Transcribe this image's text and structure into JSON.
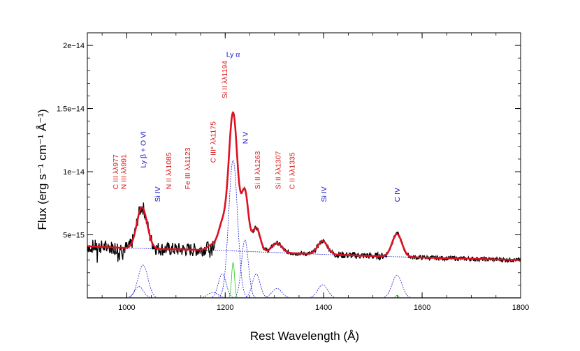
{
  "chart_data": {
    "type": "line",
    "title": "",
    "xlabel": "Rest Wavelength (Å)",
    "ylabel": "Flux (erg s⁻¹ cm⁻¹ Å⁻¹)",
    "xlim": [
      920,
      1800
    ],
    "ylim": [
      0,
      2.1e-14
    ],
    "x_ticks": [
      1000,
      1200,
      1400,
      1600,
      1800
    ],
    "x_tick_labels": [
      "1000",
      "1200",
      "1400",
      "1600",
      "1800"
    ],
    "y_ticks": [
      5e-15,
      1e-14,
      1.5e-14,
      2e-14
    ],
    "y_tick_labels": [
      "5e−15",
      "1e−14",
      "1.5e−14",
      "2e−14"
    ],
    "grid": false,
    "continuum": {
      "color": "#1a1acc",
      "points": [
        [
          920,
          4.1e-15
        ],
        [
          1000,
          3.95e-15
        ],
        [
          1200,
          3.75e-15
        ],
        [
          1400,
          3.45e-15
        ],
        [
          1600,
          3.2e-15
        ],
        [
          1800,
          3e-15
        ]
      ]
    },
    "components": [
      {
        "center": 1033,
        "amp": 2.6e-15,
        "sigma": 10,
        "color": "#1a1acc"
      },
      {
        "center": 1025,
        "amp": 9e-16,
        "sigma": 9,
        "color": "#1a1acc"
      },
      {
        "center": 1175,
        "amp": 4.5e-16,
        "sigma": 10,
        "color": "#1a1acc"
      },
      {
        "center": 1194,
        "amp": 1.9e-15,
        "sigma": 8,
        "color": "#1a1acc"
      },
      {
        "center": 1216,
        "amp": 1.09e-14,
        "sigma": 9,
        "color": "#1a1acc"
      },
      {
        "center": 1240,
        "amp": 4.6e-15,
        "sigma": 7,
        "color": "#1a1acc"
      },
      {
        "center": 1263,
        "amp": 1.9e-15,
        "sigma": 8,
        "color": "#1a1acc"
      },
      {
        "center": 1305,
        "amp": 7.5e-16,
        "sigma": 10,
        "color": "#1a1acc"
      },
      {
        "center": 1398,
        "amp": 1.05e-15,
        "sigma": 10,
        "color": "#1a1acc"
      },
      {
        "center": 1549,
        "amp": 1.8e-15,
        "sigma": 10,
        "color": "#1a1acc"
      },
      {
        "center": 1216,
        "amp": 2.8e-15,
        "sigma": 3,
        "color": "#22cc22"
      },
      {
        "center": 1549,
        "amp": 2e-16,
        "sigma": 3,
        "color": "#22cc22"
      }
    ],
    "series": [
      {
        "color": "#000000",
        "role": "observed spectrum"
      },
      {
        "color": "#dd1122",
        "role": "total model fit"
      }
    ],
    "annotations": [
      {
        "text": "Ly α",
        "x": 1216,
        "y": 1.91e-14,
        "rotate": 0,
        "color": "#1a1acc"
      },
      {
        "text": "N V",
        "x": 1240,
        "y": 1.22e-14,
        "rotate": -90,
        "color": "#1a1acc"
      },
      {
        "text": "Ly β + O VI",
        "x": 1033,
        "y": 1.03e-14,
        "rotate": -90,
        "color": "#1a1acc"
      },
      {
        "text": "Si IV",
        "x": 1062,
        "y": 7.6e-15,
        "rotate": -90,
        "color": "#1a1acc"
      },
      {
        "text": "Si IV",
        "x": 1400,
        "y": 7.6e-15,
        "rotate": -90,
        "color": "#1a1acc"
      },
      {
        "text": "C IV",
        "x": 1549,
        "y": 7.6e-15,
        "rotate": -90,
        "color": "#1a1acc"
      },
      {
        "text": "C III λλ977",
        "x": 977,
        "y": 8.6e-15,
        "rotate": -90,
        "color": "#dd2222"
      },
      {
        "text": "N III λλ991",
        "x": 993,
        "y": 8.6e-15,
        "rotate": -90,
        "color": "#dd2222"
      },
      {
        "text": "N II λλ1085",
        "x": 1085,
        "y": 8.6e-15,
        "rotate": -90,
        "color": "#dd2222"
      },
      {
        "text": "Fe III λλ1123",
        "x": 1123,
        "y": 8.6e-15,
        "rotate": -90,
        "color": "#dd2222"
      },
      {
        "text": "C III* λλ1175",
        "x": 1175,
        "y": 1.07e-14,
        "rotate": -90,
        "color": "#dd2222"
      },
      {
        "text": "Si II λλ1194",
        "x": 1198,
        "y": 1.58e-14,
        "rotate": -90,
        "color": "#dd2222"
      },
      {
        "text": "Si II λλ1263",
        "x": 1265,
        "y": 8.6e-15,
        "rotate": -90,
        "color": "#dd2222"
      },
      {
        "text": "Si II λλ1307",
        "x": 1307,
        "y": 8.6e-15,
        "rotate": -90,
        "color": "#dd2222"
      },
      {
        "text": "C II λλ1335",
        "x": 1335,
        "y": 8.6e-15,
        "rotate": -90,
        "color": "#dd2222"
      }
    ]
  }
}
